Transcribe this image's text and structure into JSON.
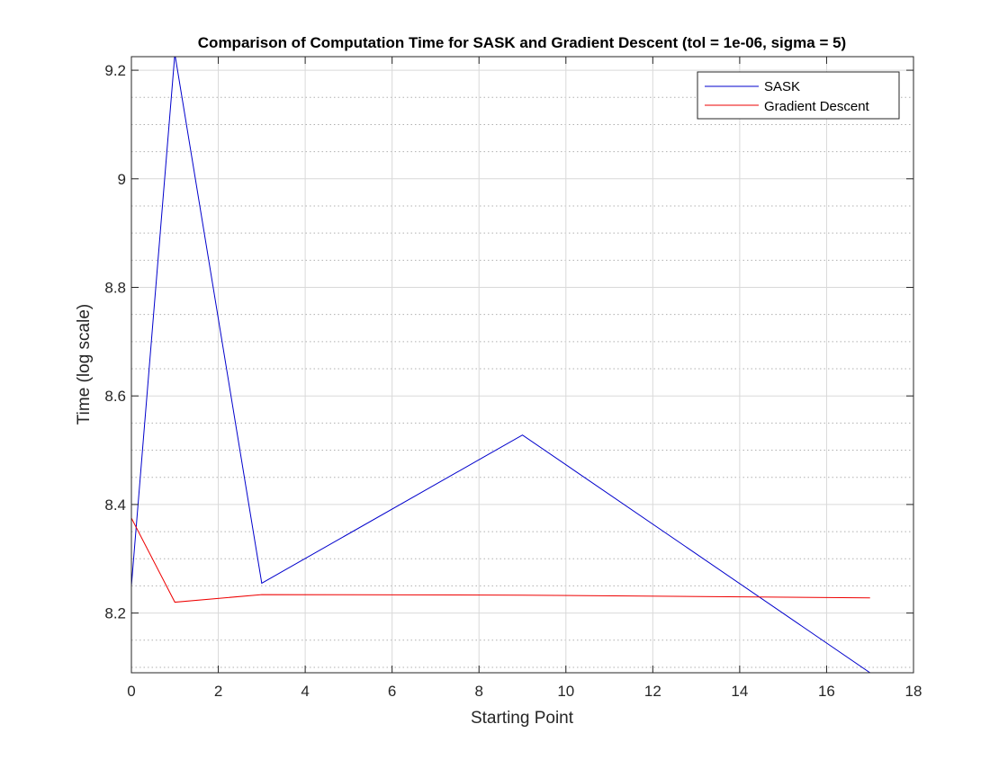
{
  "chart_data": {
    "type": "line",
    "title": "Comparison of Computation Time for SASK and Gradient Descent (tol = 1e-06, sigma = 5)",
    "xlabel": "Starting Point",
    "ylabel": "Time (log scale)",
    "xlim": [
      0,
      18
    ],
    "ylim": [
      8.09,
      9.225
    ],
    "xticks": [
      0,
      2,
      4,
      6,
      8,
      10,
      12,
      14,
      16,
      18
    ],
    "yticks": [
      8.2,
      8.4,
      8.6,
      8.8,
      9,
      9.2
    ],
    "ytick_labels": [
      "8.2",
      "8.4",
      "8.6",
      "8.8",
      "9",
      "9.2"
    ],
    "grid": true,
    "minor_grid_y": true,
    "legend": "top-right",
    "series": [
      {
        "name": "SASK",
        "color": "#0000cc",
        "x": [
          0,
          1,
          3,
          9,
          17
        ],
        "y": [
          8.25,
          9.23,
          8.255,
          8.528,
          8.09
        ]
      },
      {
        "name": "Gradient Descent",
        "color": "#ee0000",
        "x": [
          0,
          1,
          3,
          9,
          17
        ],
        "y": [
          8.375,
          8.22,
          8.234,
          8.233,
          8.228
        ]
      }
    ]
  }
}
